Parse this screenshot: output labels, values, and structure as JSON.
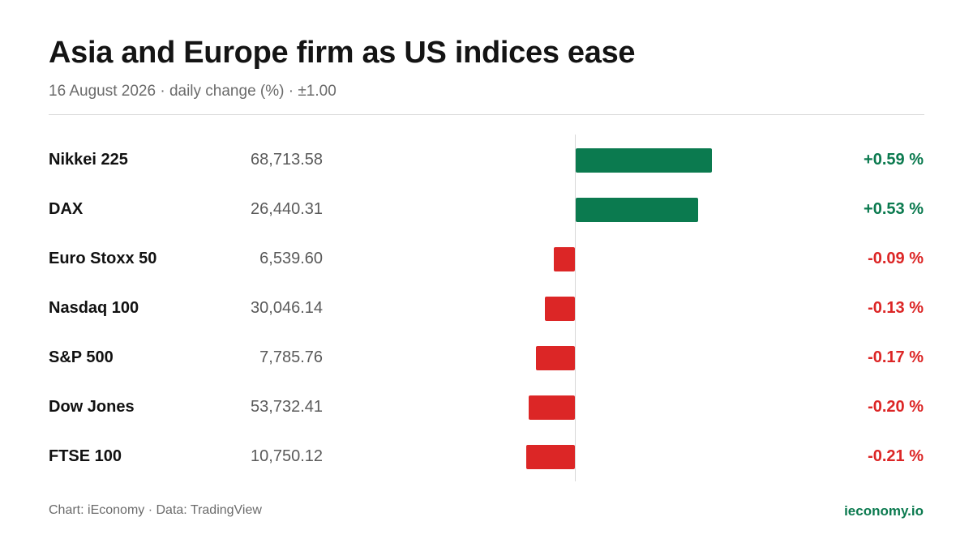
{
  "header": {
    "title": "Asia and Europe firm as US indices ease",
    "subtitle": "16 August 2026 · daily change (%) · ±1.00"
  },
  "footer": {
    "source": "Chart: iEconomy · Data: TradingView",
    "brand": "ieconomy.io"
  },
  "colors": {
    "positive": "#0b7a4f",
    "negative": "#dc2626"
  },
  "chart_data": {
    "type": "bar",
    "orientation": "horizontal",
    "title": "Asia and Europe firm as US indices ease",
    "subtitle": "16 August 2026 · daily change (%) · ±1.00",
    "xlim": [
      -1.0,
      1.0
    ],
    "grid": false,
    "rows": [
      {
        "name": "Nikkei 225",
        "level": "68,713.58",
        "change": 0.59,
        "label": "+0.59 %"
      },
      {
        "name": "DAX",
        "level": "26,440.31",
        "change": 0.53,
        "label": "+0.53 %"
      },
      {
        "name": "Euro Stoxx 50",
        "level": "6,539.60",
        "change": -0.09,
        "label": "-0.09 %"
      },
      {
        "name": "Nasdaq 100",
        "level": "30,046.14",
        "change": -0.13,
        "label": "-0.13 %"
      },
      {
        "name": "S&P 500",
        "level": "7,785.76",
        "change": -0.17,
        "label": "-0.17 %"
      },
      {
        "name": "Dow Jones",
        "level": "53,732.41",
        "change": -0.2,
        "label": "-0.20 %"
      },
      {
        "name": "FTSE 100",
        "level": "10,750.12",
        "change": -0.21,
        "label": "-0.21 %"
      }
    ]
  }
}
